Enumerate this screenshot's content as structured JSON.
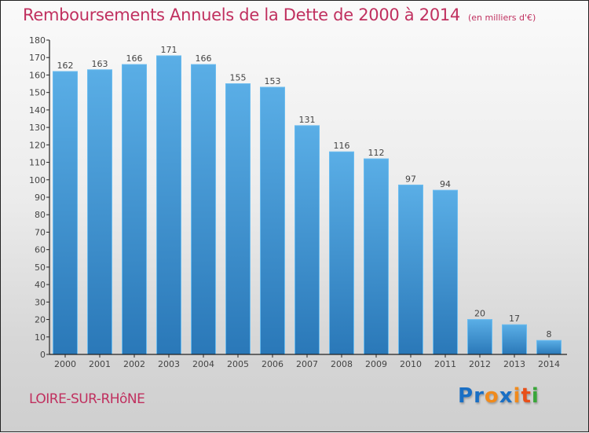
{
  "header": {
    "title": "Remboursements Annuels de la Dette de 2000 à 2014",
    "unit": "(en milliers d'€)"
  },
  "footer": {
    "commune": "LOIRE-SUR-RHôNE",
    "logo_letters": [
      {
        "char": "P",
        "color": "#1a6fc4"
      },
      {
        "char": "r",
        "color": "#1a6fc4"
      },
      {
        "char": "o",
        "color": "#f08a1c"
      },
      {
        "char": "x",
        "color": "#1a6fc4"
      },
      {
        "char": "i",
        "color": "#f08a1c"
      },
      {
        "char": "t",
        "color": "#e8501a"
      },
      {
        "char": "i",
        "color": "#3aa63a"
      }
    ]
  },
  "colors": {
    "bar_top": "#5aaee6",
    "bar_bottom": "#2a78b8",
    "title": "#c0305f"
  },
  "chart_data": {
    "type": "bar",
    "title": "Remboursements Annuels de la Dette de 2000 à 2014",
    "subtitle": "(en milliers d'€)",
    "xlabel": "",
    "ylabel": "",
    "categories": [
      "2000",
      "2001",
      "2002",
      "2003",
      "2004",
      "2005",
      "2006",
      "2007",
      "2008",
      "2009",
      "2010",
      "2011",
      "2012",
      "2013",
      "2014"
    ],
    "values": [
      162,
      163,
      166,
      171,
      166,
      155,
      153,
      131,
      116,
      112,
      97,
      94,
      20,
      17,
      8
    ],
    "ylim": [
      0,
      180
    ],
    "yticks": [
      0,
      10,
      20,
      30,
      40,
      50,
      60,
      70,
      80,
      90,
      100,
      110,
      120,
      130,
      140,
      150,
      160,
      170,
      180
    ],
    "grid": false,
    "legend": "none"
  }
}
